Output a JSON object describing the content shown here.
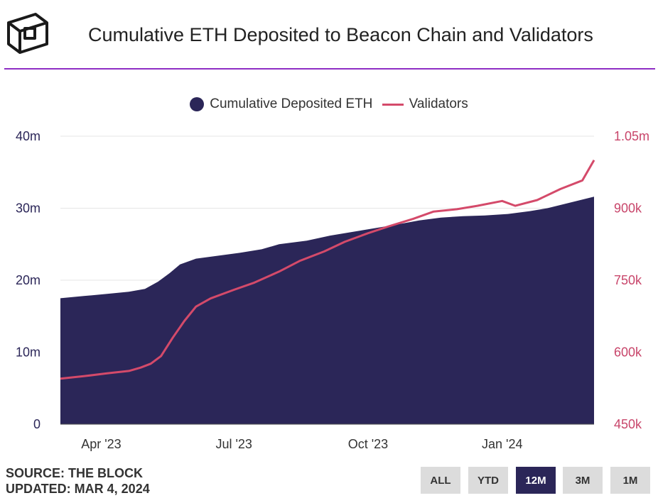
{
  "header": {
    "title": "Cumulative ETH Deposited to Beacon Chain and Validators"
  },
  "footer": {
    "source": "SOURCE: THE BLOCK",
    "updated": "UPDATED: MAR 4, 2024"
  },
  "range_buttons": [
    {
      "label": "ALL",
      "active": false
    },
    {
      "label": "YTD",
      "active": false
    },
    {
      "label": "12M",
      "active": true
    },
    {
      "label": "3M",
      "active": false
    },
    {
      "label": "1M",
      "active": false
    }
  ],
  "colors": {
    "area": "#2b2658",
    "line": "#d44a6a",
    "accent_rule": "#8e2ec4",
    "left_axis": "#2b2658",
    "right_axis": "#c8456a"
  },
  "chart_data": {
    "type": "area",
    "title": "Cumulative ETH Deposited to Beacon Chain and Validators",
    "legend_position": "top-center",
    "grid": true,
    "x_range": [
      "2023-03-04",
      "2024-03-04"
    ],
    "x_ticks": [
      {
        "date": "2023-04-01",
        "label": "Apr '23"
      },
      {
        "date": "2023-07-01",
        "label": "Jul '23"
      },
      {
        "date": "2023-10-01",
        "label": "Oct '23"
      },
      {
        "date": "2024-01-01",
        "label": "Jan '24"
      }
    ],
    "y_left": {
      "min": 0,
      "max": 40000000,
      "ticks": [
        {
          "value": 0,
          "label": "0"
        },
        {
          "value": 10000000,
          "label": "10m"
        },
        {
          "value": 20000000,
          "label": "20m"
        },
        {
          "value": 30000000,
          "label": "30m"
        },
        {
          "value": 40000000,
          "label": "40m"
        }
      ]
    },
    "y_right": {
      "min": 450000,
      "max": 1050000,
      "ticks": [
        {
          "value": 450000,
          "label": "450k"
        },
        {
          "value": 600000,
          "label": "600k"
        },
        {
          "value": 750000,
          "label": "750k"
        },
        {
          "value": 900000,
          "label": "900k"
        },
        {
          "value": 1050000,
          "label": "1.05m"
        }
      ]
    },
    "series": [
      {
        "name": "Cumulative Deposited ETH",
        "type": "area",
        "axis": "left",
        "points": [
          [
            "2023-03-04",
            17500000
          ],
          [
            "2023-03-20",
            17800000
          ],
          [
            "2023-04-05",
            18100000
          ],
          [
            "2023-04-20",
            18400000
          ],
          [
            "2023-05-01",
            18800000
          ],
          [
            "2023-05-10",
            19800000
          ],
          [
            "2023-05-18",
            21000000
          ],
          [
            "2023-05-25",
            22200000
          ],
          [
            "2023-06-05",
            23000000
          ],
          [
            "2023-06-20",
            23400000
          ],
          [
            "2023-07-05",
            23800000
          ],
          [
            "2023-07-20",
            24300000
          ],
          [
            "2023-08-01",
            25000000
          ],
          [
            "2023-08-20",
            25500000
          ],
          [
            "2023-09-05",
            26200000
          ],
          [
            "2023-09-20",
            26700000
          ],
          [
            "2023-10-05",
            27200000
          ],
          [
            "2023-10-20",
            27700000
          ],
          [
            "2023-11-05",
            28300000
          ],
          [
            "2023-11-20",
            28700000
          ],
          [
            "2023-12-05",
            28900000
          ],
          [
            "2023-12-20",
            29000000
          ],
          [
            "2024-01-05",
            29200000
          ],
          [
            "2024-01-20",
            29600000
          ],
          [
            "2024-02-01",
            30000000
          ],
          [
            "2024-02-15",
            30700000
          ],
          [
            "2024-03-04",
            31600000
          ]
        ]
      },
      {
        "name": "Validators",
        "type": "line",
        "axis": "right",
        "points": [
          [
            "2023-03-04",
            545000
          ],
          [
            "2023-03-20",
            550000
          ],
          [
            "2023-04-05",
            556000
          ],
          [
            "2023-04-20",
            561000
          ],
          [
            "2023-04-28",
            568000
          ],
          [
            "2023-05-05",
            576000
          ],
          [
            "2023-05-12",
            592000
          ],
          [
            "2023-05-20",
            630000
          ],
          [
            "2023-05-28",
            665000
          ],
          [
            "2023-06-05",
            695000
          ],
          [
            "2023-06-15",
            712000
          ],
          [
            "2023-07-01",
            730000
          ],
          [
            "2023-07-15",
            745000
          ],
          [
            "2023-08-01",
            768000
          ],
          [
            "2023-08-15",
            790000
          ],
          [
            "2023-09-01",
            810000
          ],
          [
            "2023-09-15",
            830000
          ],
          [
            "2023-10-01",
            848000
          ],
          [
            "2023-10-15",
            862000
          ],
          [
            "2023-11-01",
            878000
          ],
          [
            "2023-11-15",
            893000
          ],
          [
            "2023-12-01",
            898000
          ],
          [
            "2023-12-15",
            905000
          ],
          [
            "2024-01-01",
            915000
          ],
          [
            "2024-01-10",
            905000
          ],
          [
            "2024-01-25",
            917000
          ],
          [
            "2024-02-10",
            940000
          ],
          [
            "2024-02-25",
            958000
          ],
          [
            "2024-03-04",
            1000000
          ]
        ]
      }
    ]
  }
}
